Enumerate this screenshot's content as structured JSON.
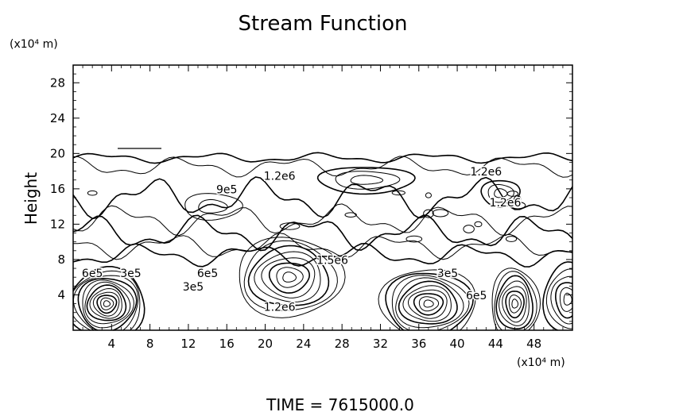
{
  "chart_data": {
    "type": "contour",
    "title": "Stream Function",
    "ylabel": "Height",
    "xunit": "(x10⁴ m)",
    "yunit": "(x10⁴ m)",
    "footer": "TIME  =  7615000.0",
    "xlim": [
      0,
      52
    ],
    "ylim": [
      0,
      30
    ],
    "xticks": [
      4,
      8,
      12,
      16,
      20,
      24,
      28,
      32,
      36,
      40,
      44,
      48
    ],
    "yticks": [
      4,
      8,
      12,
      16,
      20,
      24,
      28
    ],
    "contour_labels": [
      {
        "text": "1.2e6",
        "x": 21.5,
        "y": 17.0
      },
      {
        "text": "9e5",
        "x": 16.0,
        "y": 15.5
      },
      {
        "text": "1.2e6",
        "x": 43.0,
        "y": 17.5
      },
      {
        "text": "1.2e6",
        "x": 45.0,
        "y": 14.0
      },
      {
        "text": "6e5",
        "x": 2.0,
        "y": 6.0
      },
      {
        "text": "3e5",
        "x": 6.0,
        "y": 6.0
      },
      {
        "text": "3e5",
        "x": 12.5,
        "y": 4.5
      },
      {
        "text": "6e5",
        "x": 14.0,
        "y": 6.0
      },
      {
        "text": "1.2e6",
        "x": 21.5,
        "y": 2.2
      },
      {
        "text": "1.5e6",
        "x": 27.0,
        "y": 7.5
      },
      {
        "text": "3e5",
        "x": 39.0,
        "y": 6.0
      },
      {
        "text": "6e5",
        "x": 42.0,
        "y": 3.5
      }
    ],
    "vortices": [
      {
        "x": 3.5,
        "y": 3.0,
        "rings": 12,
        "rx": 4.0,
        "ry": 4.0
      },
      {
        "x": 22.5,
        "y": 6.0,
        "rings": 8,
        "rx": 5.5,
        "ry": 4.5
      },
      {
        "x": 37.0,
        "y": 3.0,
        "rings": 10,
        "rx": 5.0,
        "ry": 4.0
      },
      {
        "x": 46.0,
        "y": 3.0,
        "rings": 8,
        "rx": 2.5,
        "ry": 4.0
      },
      {
        "x": 51.5,
        "y": 3.5,
        "rings": 6,
        "rx": 2.5,
        "ry": 4.0
      },
      {
        "x": 30.5,
        "y": 17.0,
        "rings": 3,
        "rx": 5.0,
        "ry": 1.5
      },
      {
        "x": 44.5,
        "y": 15.5,
        "rings": 3,
        "rx": 2.0,
        "ry": 1.5
      },
      {
        "x": 14.5,
        "y": 14.0,
        "rings": 2,
        "rx": 3.0,
        "ry": 1.5
      }
    ],
    "bands": [
      {
        "y": 19.5,
        "amp": 0.4
      },
      {
        "y": 18.5,
        "amp": 0.8
      },
      {
        "y": 15.0,
        "amp": 1.6
      },
      {
        "y": 12.5,
        "amp": 1.2
      },
      {
        "y": 11.0,
        "amp": 1.4
      },
      {
        "y": 9.5,
        "amp": 1.0
      },
      {
        "y": 8.5,
        "amp": 0.9
      }
    ],
    "line_color": "#000000"
  }
}
